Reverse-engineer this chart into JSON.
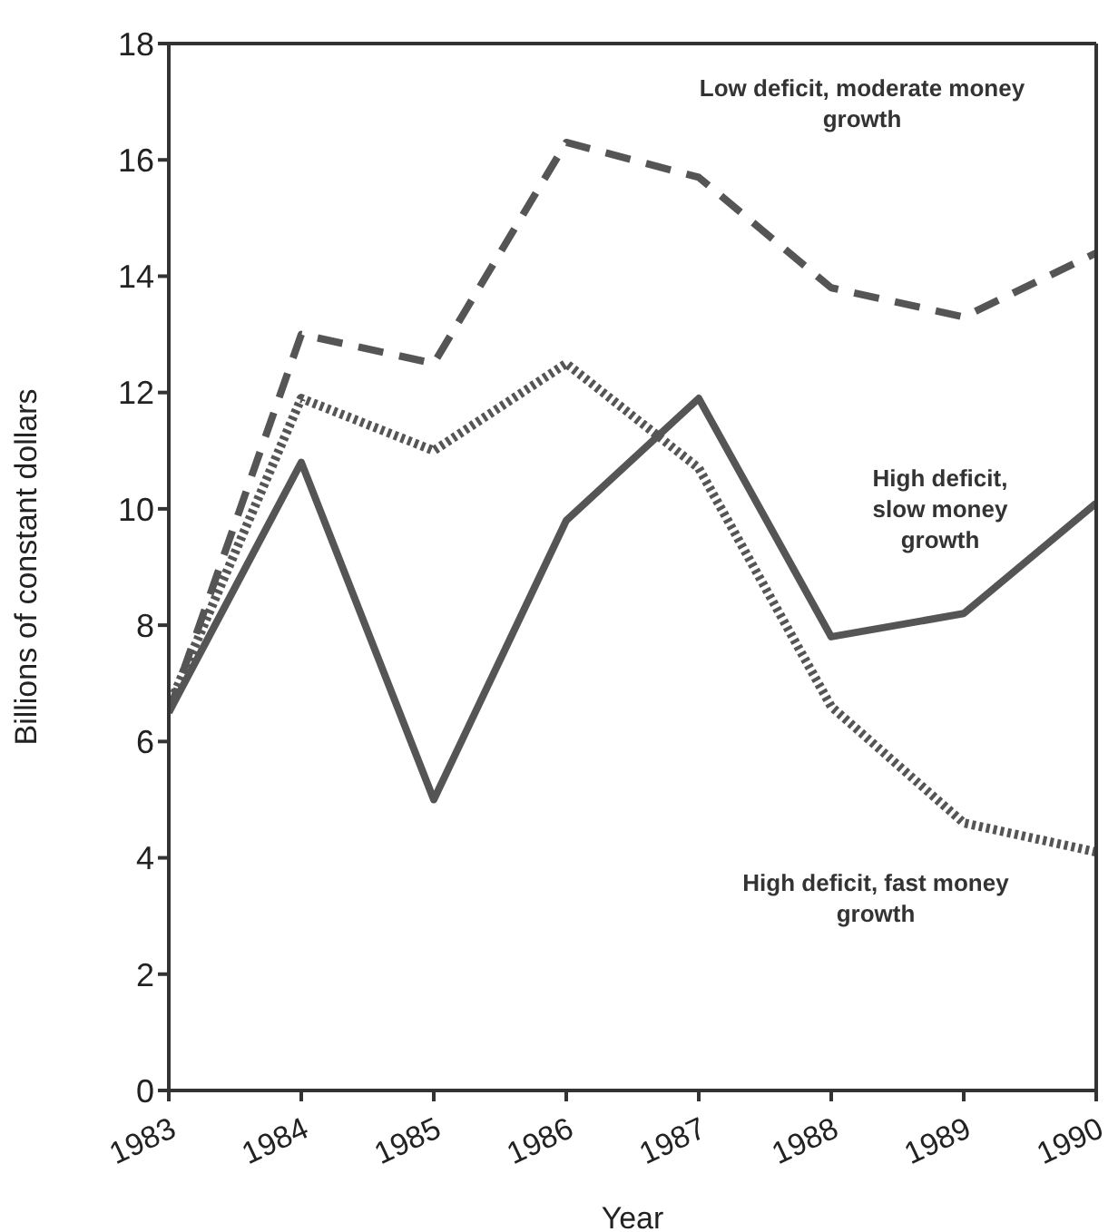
{
  "chart_data": {
    "type": "line",
    "xlabel": "Year",
    "ylabel": "Billions of constant dollars",
    "x": [
      1983,
      1984,
      1985,
      1986,
      1987,
      1988,
      1989,
      1990
    ],
    "xlim": [
      1983,
      1990
    ],
    "xticks": [
      1983,
      1984,
      1985,
      1986,
      1987,
      1988,
      1989,
      1990
    ],
    "ylim": [
      0,
      18
    ],
    "yticks": [
      0,
      2,
      4,
      6,
      8,
      10,
      12,
      14,
      16,
      18
    ],
    "grid": false,
    "marker": "none",
    "series": [
      {
        "name": "Low deficit, moderate money growth",
        "color": "#555555",
        "line_style": "dashed",
        "values": [
          6.5,
          13.0,
          12.5,
          16.3,
          15.7,
          13.8,
          13.3,
          14.4
        ]
      },
      {
        "name": "High deficit, slow money growth",
        "color": "#555555",
        "line_style": "solid",
        "values": [
          6.5,
          10.8,
          5.0,
          9.8,
          11.9,
          7.8,
          8.2,
          10.1
        ]
      },
      {
        "name": "High deficit, fast money growth",
        "color": "#555555",
        "line_style": "dotted",
        "values": [
          6.6,
          11.9,
          11.0,
          12.5,
          10.7,
          6.6,
          4.6,
          4.1
        ]
      }
    ]
  }
}
